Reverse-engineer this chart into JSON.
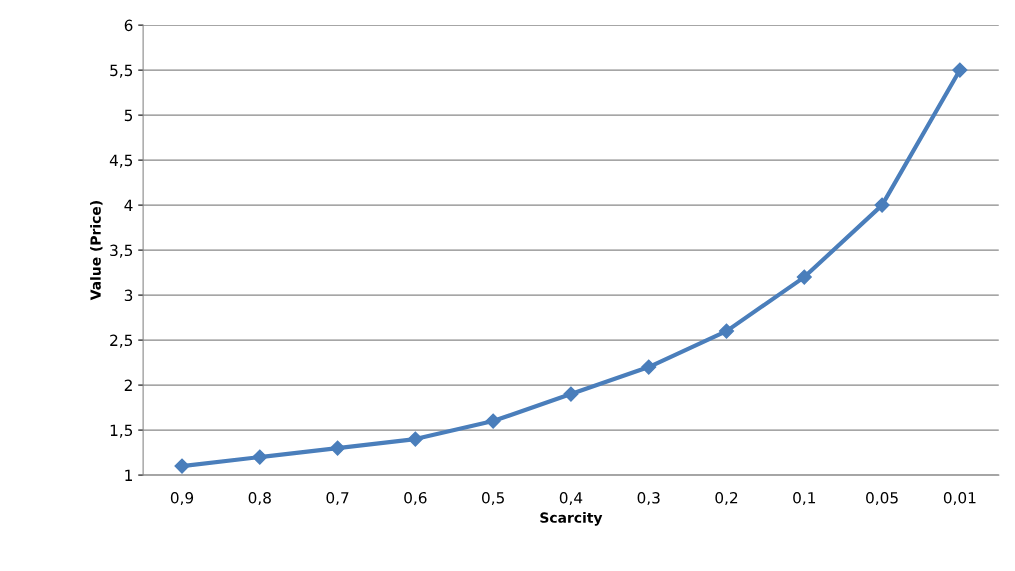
{
  "chart_data": {
    "type": "line",
    "xlabel": "Scarcity",
    "ylabel": "Value (Price)",
    "categories": [
      "0,9",
      "0,8",
      "0,7",
      "0,6",
      "0,5",
      "0,4",
      "0,3",
      "0,2",
      "0,1",
      "0,05",
      "0,01"
    ],
    "series": [
      {
        "color": "#4a7ebb",
        "values": [
          1.1,
          1.2,
          1.3,
          1.4,
          1.6,
          1.9,
          2.2,
          2.6,
          3.2,
          4.0,
          5.5
        ]
      }
    ],
    "ylim": [
      1,
      6
    ],
    "yticks": [
      1,
      {
        "value": 1.5,
        "label": "1,5"
      },
      2,
      {
        "value": 2.5,
        "label": "2,5"
      },
      3,
      {
        "value": 3.5,
        "label": "3,5"
      },
      4,
      {
        "value": 4.5,
        "label": "4,5"
      },
      5,
      {
        "value": 5.5,
        "label": "5,5"
      },
      6
    ],
    "grid": "y",
    "marker": "diamond",
    "line_style": "solid"
  }
}
